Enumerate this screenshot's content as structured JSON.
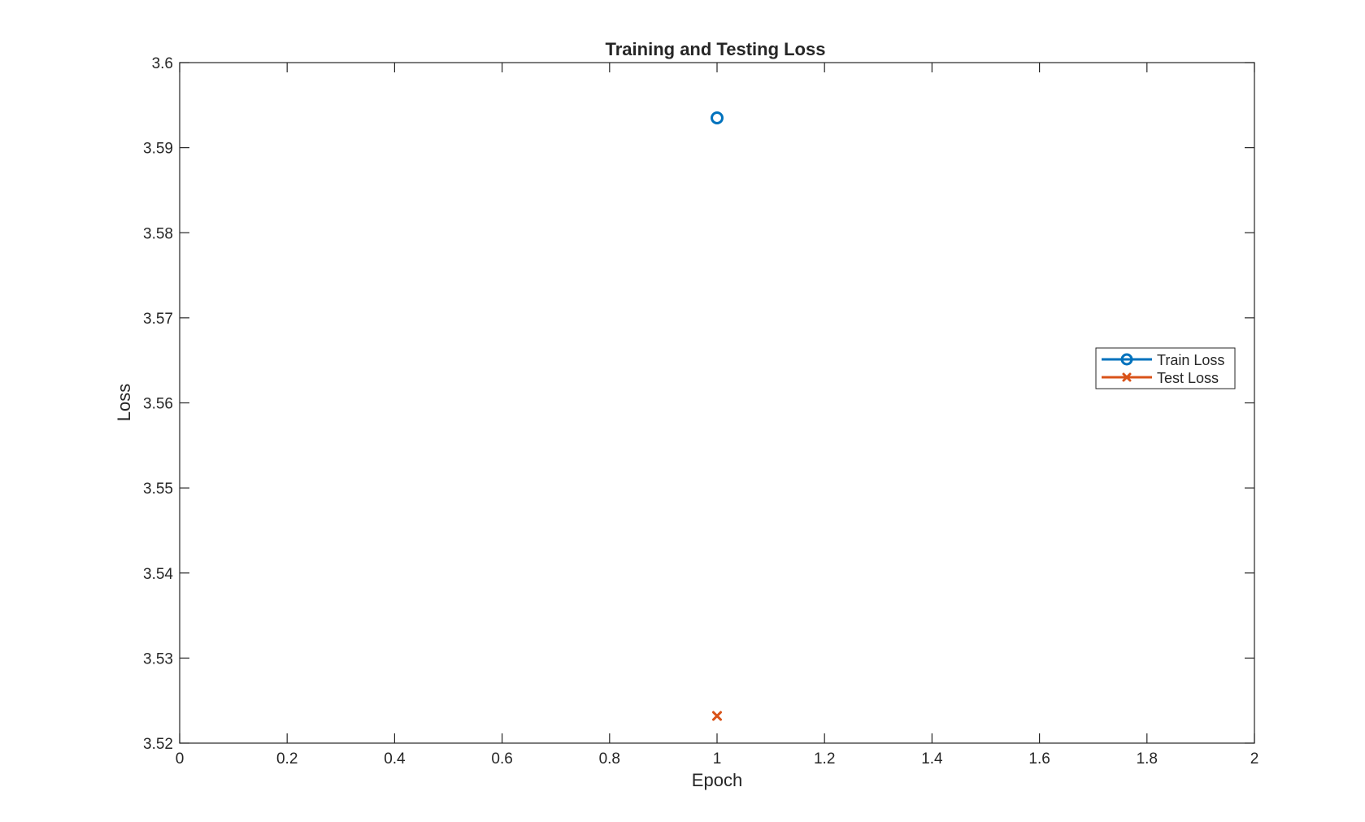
{
  "chart_data": {
    "type": "line",
    "title": "Training and Testing Loss",
    "xlabel": "Epoch",
    "ylabel": "Loss",
    "xlim": [
      0,
      2
    ],
    "ylim": [
      3.52,
      3.6
    ],
    "xticks": [
      0,
      0.2,
      0.4,
      0.6,
      0.8,
      1,
      1.2,
      1.4,
      1.6,
      1.8,
      2
    ],
    "xtick_labels": [
      "0",
      "0.2",
      "0.4",
      "0.6",
      "0.8",
      "1",
      "1.2",
      "1.4",
      "1.6",
      "1.8",
      "2"
    ],
    "yticks": [
      3.52,
      3.53,
      3.54,
      3.55,
      3.56,
      3.57,
      3.58,
      3.59,
      3.6
    ],
    "ytick_labels": [
      "3.52",
      "3.53",
      "3.54",
      "3.55",
      "3.56",
      "3.57",
      "3.58",
      "3.59",
      "3.6"
    ],
    "grid": false,
    "legend_position": "right",
    "series": [
      {
        "name": "Train Loss",
        "marker": "circle",
        "color": "#0072BD",
        "x": [
          1
        ],
        "y": [
          3.5935
        ]
      },
      {
        "name": "Test Loss",
        "marker": "x",
        "color": "#D95319",
        "x": [
          1
        ],
        "y": [
          3.5232
        ]
      }
    ]
  }
}
